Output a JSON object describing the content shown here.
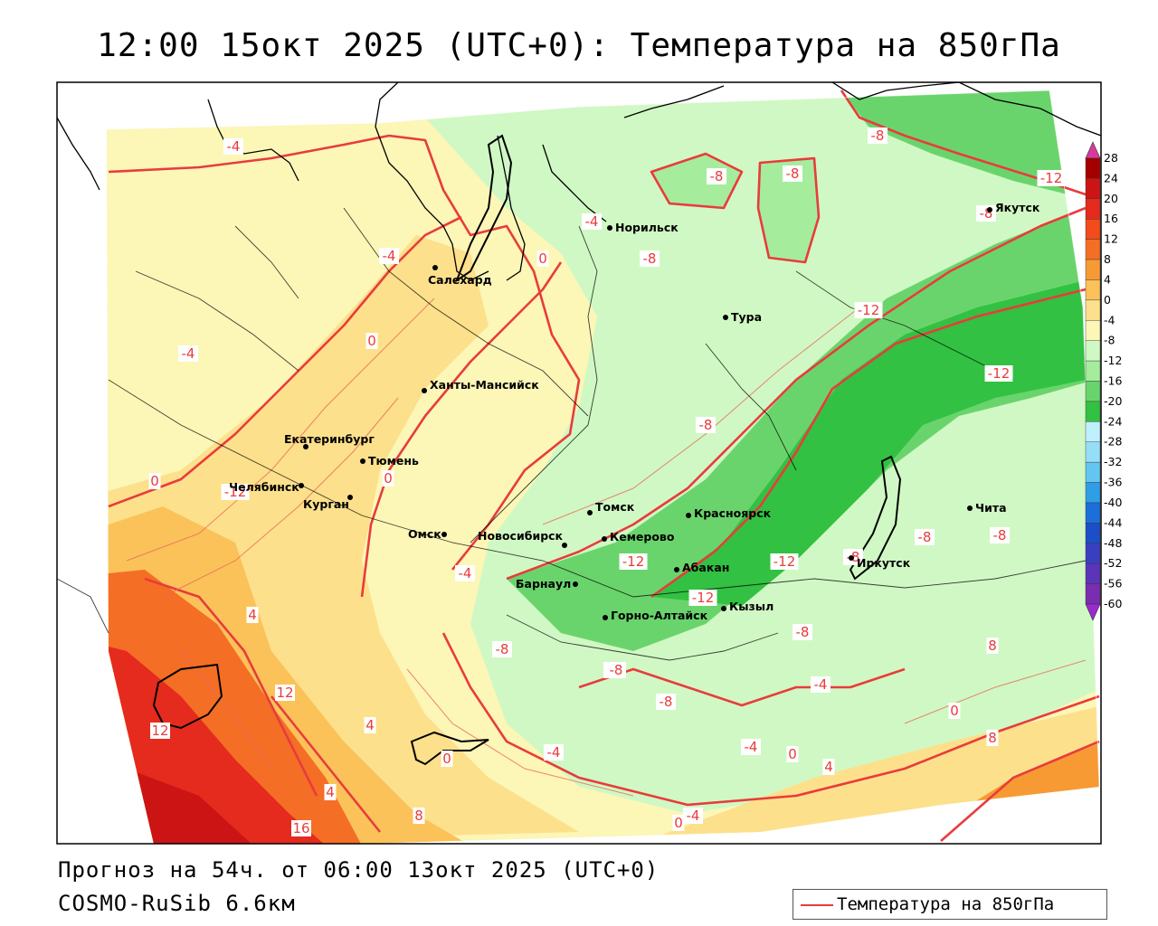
{
  "title": "12:00 15окт 2025 (UTC+0): Температура на 850гПа",
  "footer": {
    "forecast": "Прогноз на 54ч. от 06:00 13окт 2025 (UTC+0)",
    "model": "COSMO-RuSib 6.6км"
  },
  "legend": {
    "label": "Температура на 850гПа",
    "color": "#e83c3c"
  },
  "colorbar": {
    "ticks": [
      "28",
      "24",
      "20",
      "16",
      "12",
      "8",
      "4",
      "0",
      "-4",
      "-8",
      "-12",
      "-16",
      "-20",
      "-24",
      "-28",
      "-32",
      "-36",
      "-40",
      "-44",
      "-48",
      "-52",
      "-56",
      "-60"
    ],
    "colors": [
      "#a50000",
      "#cc1414",
      "#e42b1e",
      "#f24b1c",
      "#f46e25",
      "#f79a34",
      "#fbc25a",
      "#fde08b",
      "#fcf6b7",
      "#d0f8c4",
      "#a6ec9d",
      "#6ad46c",
      "#32c142",
      "#bff0ff",
      "#96def8",
      "#64c6f0",
      "#2f9ee6",
      "#1c6fd9",
      "#1c4ec7",
      "#3a3fc0",
      "#5a35b8",
      "#7a2db0",
      "#6d1ea8"
    ],
    "top_color": "#d43b9c",
    "bottom_color": "#9a2ad0"
  },
  "cities": [
    {
      "name": "Салехард",
      "lon": 66.6,
      "lat": 66.5
    },
    {
      "name": "Норильск",
      "lon": 88.2,
      "lat": 69.3
    },
    {
      "name": "Якутск",
      "lon": 129.7,
      "lat": 62.0
    },
    {
      "name": "Тура",
      "lon": 100.2,
      "lat": 64.3
    },
    {
      "name": "Ханты-Мансийск",
      "lon": 69.0,
      "lat": 61.0
    },
    {
      "name": "Екатеринбург",
      "lon": 60.6,
      "lat": 56.8
    },
    {
      "name": "Тюмень",
      "lon": 65.5,
      "lat": 57.2
    },
    {
      "name": "Челябинск",
      "lon": 61.4,
      "lat": 55.2
    },
    {
      "name": "Курган",
      "lon": 65.3,
      "lat": 55.4
    },
    {
      "name": "Омск",
      "lon": 73.4,
      "lat": 55.0
    },
    {
      "name": "Новосибирск",
      "lon": 82.9,
      "lat": 55.0
    },
    {
      "name": "Томск",
      "lon": 85.0,
      "lat": 56.5
    },
    {
      "name": "Кемерово",
      "lon": 86.1,
      "lat": 55.4
    },
    {
      "name": "Красноярск",
      "lon": 92.9,
      "lat": 56.0
    },
    {
      "name": "Абакан",
      "lon": 91.4,
      "lat": 53.7
    },
    {
      "name": "Барнаул",
      "lon": 83.8,
      "lat": 53.4
    },
    {
      "name": "Горно-Алтайск",
      "lon": 85.9,
      "lat": 51.9
    },
    {
      "name": "Кызыл",
      "lon": 94.4,
      "lat": 51.7
    },
    {
      "name": "Иркутск",
      "lon": 104.3,
      "lat": 52.3
    },
    {
      "name": "Чита",
      "lon": 113.5,
      "lat": 52.0
    }
  ],
  "isotherm_labels": [
    {
      "text": "-4"
    },
    {
      "text": "-8"
    },
    {
      "text": "-8"
    },
    {
      "text": "-8"
    },
    {
      "text": "-12"
    },
    {
      "text": "-8"
    },
    {
      "text": "-4"
    },
    {
      "text": "-4"
    },
    {
      "text": "0"
    },
    {
      "text": "-8"
    },
    {
      "text": "-12"
    },
    {
      "text": "-4"
    },
    {
      "text": "0"
    },
    {
      "text": "-12"
    },
    {
      "text": "-8"
    },
    {
      "text": "0"
    },
    {
      "text": "0"
    },
    {
      "text": "-12"
    },
    {
      "text": "-12"
    },
    {
      "text": "-12"
    },
    {
      "text": "-12"
    },
    {
      "text": "-8"
    },
    {
      "text": "-8"
    },
    {
      "text": "-4"
    },
    {
      "text": "4"
    },
    {
      "text": "-8"
    },
    {
      "text": "-8"
    },
    {
      "text": "-8"
    },
    {
      "text": "-4"
    },
    {
      "text": "8"
    },
    {
      "text": "12"
    },
    {
      "text": "4"
    },
    {
      "text": "0"
    },
    {
      "text": "-8"
    },
    {
      "text": "-4"
    },
    {
      "text": "-4"
    },
    {
      "text": "0"
    },
    {
      "text": "4"
    },
    {
      "text": "0"
    },
    {
      "text": "8"
    },
    {
      "text": "12"
    },
    {
      "text": "4"
    },
    {
      "text": "8"
    },
    {
      "text": "16"
    },
    {
      "text": "0"
    },
    {
      "text": "-4"
    },
    {
      "text": "-8"
    },
    {
      "text": "-8"
    }
  ]
}
